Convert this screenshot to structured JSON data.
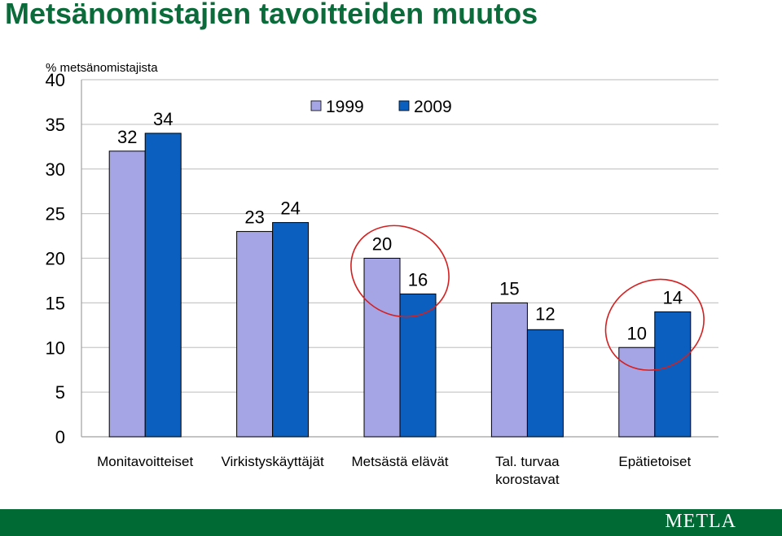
{
  "title": "Metsänomistajien tavoitteiden muutos",
  "footer": {
    "logo_text": "METLA"
  },
  "colors": {
    "title": "#0b6b3a",
    "series_1999": "#a5a5e6",
    "series_2009": "#0a5fbf",
    "footer": "#006a35",
    "highlight": "#d42020",
    "grid": "#c8c8c8"
  },
  "chart_data": {
    "type": "bar",
    "title": "",
    "ylabel": "% metsänomistajista",
    "xlabel": "",
    "ylim": [
      0,
      40
    ],
    "yticks": [
      0,
      5,
      10,
      15,
      20,
      25,
      30,
      35,
      40
    ],
    "grid": true,
    "legend_position": "top-center",
    "categories": [
      [
        "Monitavoitteiset"
      ],
      [
        "Virkistyskäyttäjät"
      ],
      [
        "Metsästä elävät"
      ],
      [
        "Tal. turvaa",
        "korostavat"
      ],
      [
        "Epätietoiset"
      ]
    ],
    "series": [
      {
        "name": "1999",
        "values": [
          32,
          23,
          20,
          15,
          10
        ]
      },
      {
        "name": "2009",
        "values": [
          34,
          24,
          16,
          12,
          14
        ]
      }
    ],
    "highlighted_categories": [
      2,
      4
    ]
  }
}
